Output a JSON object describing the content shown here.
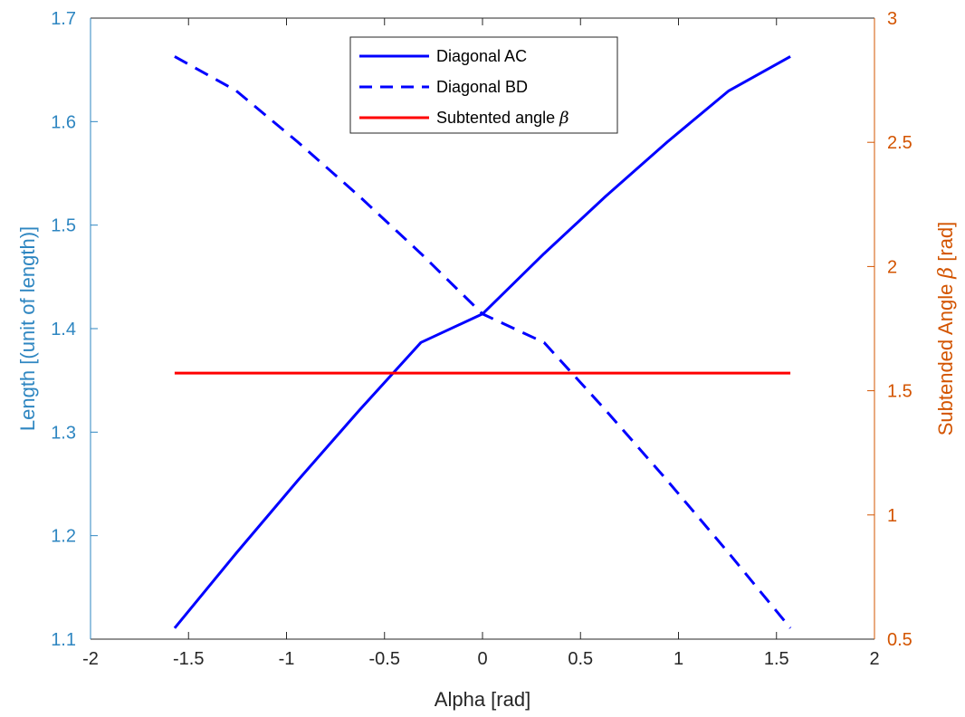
{
  "chart_data": {
    "type": "line",
    "xlabel": "Alpha [rad]",
    "ylabel_left": "Length [(unit of length)]",
    "ylabel_right_prefix": "Subtended Angle ",
    "ylabel_right_symbol": "β",
    "ylabel_right_suffix": " [rad]",
    "xlim": [
      -2,
      2
    ],
    "ylim_left": [
      1.1,
      1.7
    ],
    "ylim_right": [
      0.5,
      3
    ],
    "x_ticks": [
      -2,
      -1.5,
      -1,
      -0.5,
      0,
      0.5,
      1,
      1.5,
      2
    ],
    "x_tick_labels": [
      "-2",
      "-1.5",
      "-1",
      "-0.5",
      "0",
      "0.5",
      "1",
      "1.5",
      "2"
    ],
    "y_left_ticks": [
      1.1,
      1.2,
      1.3,
      1.4,
      1.5,
      1.6,
      1.7
    ],
    "y_left_tick_labels": [
      "1.1",
      "1.2",
      "1.3",
      "1.4",
      "1.5",
      "1.6",
      "1.7"
    ],
    "y_right_ticks": [
      0.5,
      1,
      1.5,
      2,
      2.5,
      3
    ],
    "y_right_tick_labels": [
      "0.5",
      "1",
      "1.5",
      "2",
      "2.5",
      "3"
    ],
    "grid": false,
    "legend_placement": "top-center",
    "colors": {
      "left_axis": "#2e86c1",
      "right_axis": "#d35400",
      "ac": "#0000ff",
      "bd": "#0000ff",
      "beta": "#ff0000",
      "axes": "#262626"
    },
    "series": [
      {
        "name": "Diagonal AC",
        "axis": "left",
        "style": "solid",
        "x": [
          -1.5708,
          -1.2566,
          -0.9425,
          -0.6283,
          -0.3142,
          0,
          0.3142,
          0.6283,
          0.9425,
          1.2566,
          1.5708
        ],
        "y": [
          1.1107,
          1.1831,
          1.2533,
          1.3212,
          1.3866,
          1.4142,
          1.4725,
          1.5278,
          1.5803,
          1.6298,
          1.6629
        ]
      },
      {
        "name": "Diagonal BD",
        "axis": "left",
        "style": "dashed",
        "x": [
          -1.5708,
          -1.2566,
          -0.9425,
          -0.6283,
          -0.3142,
          0,
          0.3142,
          0.6283,
          0.9425,
          1.2566,
          1.5708
        ],
        "y": [
          1.6629,
          1.6298,
          1.5803,
          1.5278,
          1.4725,
          1.4142,
          1.3866,
          1.3212,
          1.2533,
          1.1831,
          1.1107
        ]
      },
      {
        "name_prefix": "Subtented angle ",
        "name_symbol": "β",
        "axis": "right",
        "style": "solid",
        "x": [
          -1.5708,
          1.5708
        ],
        "y": [
          1.5708,
          1.5708
        ]
      }
    ]
  }
}
